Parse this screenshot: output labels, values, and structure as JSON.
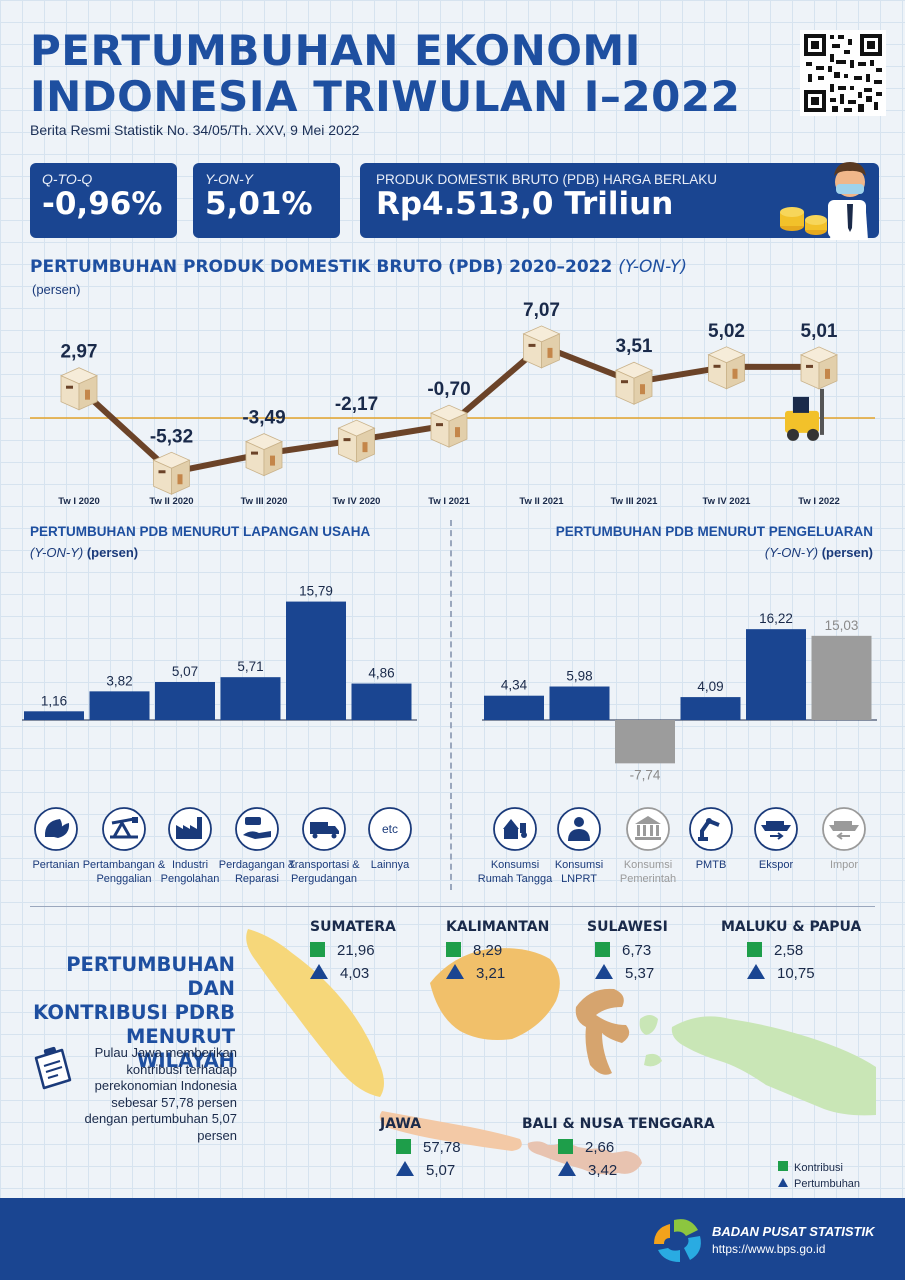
{
  "header": {
    "title_line1": "PERTUMBUHAN EKONOMI",
    "title_line2": "INDONESIA TRIWULAN I–2022",
    "subtitle": "Berita Resmi Statistik No. 34/05/Th. XXV, 9 Mei 2022"
  },
  "cards": {
    "qtoq_label": "Q-TO-Q",
    "qtoq_value": "-0,96%",
    "yony_label": "Y-ON-Y",
    "yony_value": "5,01%",
    "pdb_label": "PRODUK DOMESTIK BRUTO (PDB) HARGA BERLAKU",
    "pdb_value": "Rp4.513,0 Triliun"
  },
  "line_section": {
    "title": "PERTUMBUHAN PRODUK DOMESTIK BRUTO (PDB) 2020–2022",
    "title_suffix": "(Y-ON-Y)",
    "unit": "(persen)"
  },
  "lapangan_section": {
    "title": "PERTUMBUHAN PDB MENURUT LAPANGAN USAHA",
    "unit_italic": "(Y-ON-Y)",
    "unit": "(persen)"
  },
  "pengeluaran_section": {
    "title": "PERTUMBUHAN PDB MENURUT PENGELUARAN",
    "unit_italic": "(Y-ON-Y)",
    "unit": "(persen)"
  },
  "chart_data": [
    {
      "type": "line",
      "categories": [
        "Tw I 2020",
        "Tw II 2020",
        "Tw III 2020",
        "Tw IV 2020",
        "Tw I 2021",
        "Tw II 2021",
        "Tw III 2021",
        "Tw IV 2021",
        "Tw I 2022"
      ],
      "values": [
        2.97,
        -5.32,
        -3.49,
        -2.17,
        -0.7,
        7.07,
        3.51,
        5.02,
        5.01
      ],
      "labels": [
        "2,97",
        "-5,32",
        "-3,49",
        "-2,17",
        "-0,70",
        "7,07",
        "3,51",
        "5,02",
        "5,01"
      ],
      "title": "PERTUMBUHAN PRODUK DOMESTIK BRUTO (PDB) 2020–2022 (Y-ON-Y)",
      "ylabel": "(persen)",
      "ylim": [
        -8,
        9
      ]
    },
    {
      "type": "bar",
      "categories": [
        "Pertanian",
        "Pertambangan & Penggalian",
        "Industri Pengolahan",
        "Perdagangan & Reparasi",
        "Transportasi & Pergudangan",
        "Lainnya"
      ],
      "values": [
        1.16,
        3.82,
        5.07,
        5.71,
        15.79,
        4.86
      ],
      "labels": [
        "1,16",
        "3,82",
        "5,07",
        "5,71",
        "15,79",
        "4,86"
      ],
      "title": "PERTUMBUHAN PDB MENURUT LAPANGAN USAHA",
      "ylabel": "(Y-ON-Y) (persen)",
      "ylim": [
        0,
        18
      ]
    },
    {
      "type": "bar",
      "categories": [
        "Konsumsi Rumah Tangga",
        "Konsumsi LNPRT",
        "Konsumsi Pemerintah",
        "PMTB",
        "Ekspor",
        "Impor"
      ],
      "values": [
        4.34,
        5.98,
        -7.74,
        4.09,
        16.22,
        15.03
      ],
      "labels": [
        "4,34",
        "5,98",
        "-7,74",
        "4,09",
        "16,22",
        "15,03"
      ],
      "highlight": [
        true,
        true,
        false,
        true,
        true,
        false
      ],
      "title": "PERTUMBUHAN PDB MENURUT PENGELUARAN",
      "ylabel": "(Y-ON-Y) (persen)",
      "ylim": [
        -9,
        18
      ]
    }
  ],
  "sector_icons": [
    {
      "label": "Pertanian",
      "icon": "leaf-icon"
    },
    {
      "label": "Pertambangan & Penggalian",
      "icon": "oil-pump-icon"
    },
    {
      "label": "Industri Pengolahan",
      "icon": "factory-icon"
    },
    {
      "label": "Perdagangan & Reparasi",
      "icon": "handshake-icon"
    },
    {
      "label": "Transportasi & Pergudangan",
      "icon": "truck-icon"
    },
    {
      "label": "Lainnya",
      "icon": "etc-icon",
      "text": "etc"
    }
  ],
  "expenditure_icons": [
    {
      "label": "Konsumsi Rumah Tangga",
      "icon": "household-icon"
    },
    {
      "label": "Konsumsi LNPRT",
      "icon": "person-icon"
    },
    {
      "label": "Konsumsi Pemerintah",
      "icon": "government-building-icon"
    },
    {
      "label": "PMTB",
      "icon": "robot-arm-icon"
    },
    {
      "label": "Ekspor",
      "icon": "ship-export-icon"
    },
    {
      "label": "Impor",
      "icon": "ship-import-icon"
    }
  ],
  "region_section": {
    "title_line1": "PERTUMBUHAN DAN",
    "title_line2": "KONTRIBUSI PDRB",
    "title_line3": "MENURUT WILAYAH",
    "note": "Pulau Jawa memberikan kontribusi terhadap perekonomian Indonesia sebesar 57,78 persen dengan pertumbuhan 5,07 persen"
  },
  "regions": [
    {
      "name": "SUMATERA",
      "kontribusi": "21,96",
      "pertumbuhan": "4,03"
    },
    {
      "name": "KALIMANTAN",
      "kontribusi": "8,29",
      "pertumbuhan": "3,21"
    },
    {
      "name": "SULAWESI",
      "kontribusi": "6,73",
      "pertumbuhan": "5,37"
    },
    {
      "name": "MALUKU & PAPUA",
      "kontribusi": "2,58",
      "pertumbuhan": "10,75"
    },
    {
      "name": "JAWA",
      "kontribusi": "57,78",
      "pertumbuhan": "5,07"
    },
    {
      "name": "BALI & NUSA TENGGARA",
      "kontribusi": "2,66",
      "pertumbuhan": "3,42"
    }
  ],
  "legend": {
    "kontribusi": "Kontribusi",
    "pertumbuhan": "Pertumbuhan"
  },
  "colors": {
    "primary": "#1a4591",
    "title": "#1e4fa0",
    "grey_bar": "#9c9c9c",
    "line": "#6b4328",
    "baseline": "#e3a32a",
    "green": "#1e9e4a",
    "sumatera": "#f6d77a",
    "kalimantan": "#f1c06a",
    "sulawesi": "#d6a46e",
    "papua": "#c9e6b6",
    "jawa": "#f3c9a6",
    "bali": "#e8c3b0"
  },
  "footer": {
    "org": "BADAN PUSAT STATISTIK",
    "url": "https://www.bps.go.id"
  }
}
